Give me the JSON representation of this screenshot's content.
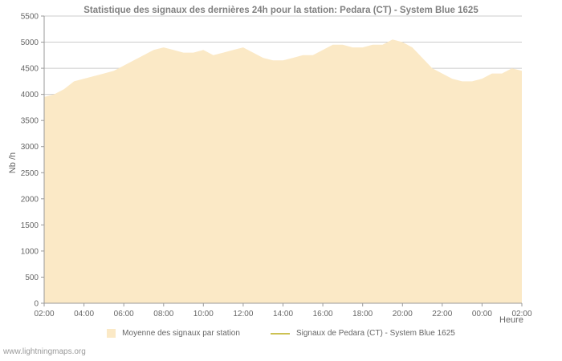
{
  "page": {
    "watermark": "www.lightningmaps.org"
  },
  "chart_data": {
    "type": "area",
    "title": "Statistique des signaux des dernières 24h pour la station: Pedara (CT) - System Blue 1625",
    "xlabel": "Heure",
    "ylabel": "Nb /h",
    "ylim": [
      0,
      5500
    ],
    "y_ticks": [
      0,
      500,
      1000,
      1500,
      2000,
      2500,
      3000,
      3500,
      4000,
      4500,
      5000,
      5500
    ],
    "x_tick_labels": [
      "02:00",
      "04:00",
      "06:00",
      "08:00",
      "10:00",
      "12:00",
      "14:00",
      "16:00",
      "18:00",
      "20:00",
      "22:00",
      "00:00",
      "02:00"
    ],
    "grid": true,
    "legend_position": "bottom",
    "colors": {
      "grid": "#cccccc",
      "axis": "#999999",
      "tick_text": "#666666",
      "title": "#808080",
      "area_fill": "#fbe9c6",
      "line": "#ccc152"
    },
    "series": [
      {
        "name": "Moyenne des signaux par station",
        "type": "area",
        "color": "#fbe9c6",
        "x_start": "02:00",
        "step_minutes": 30,
        "values": [
          3950,
          4000,
          4100,
          4250,
          4300,
          4350,
          4400,
          4450,
          4550,
          4650,
          4750,
          4850,
          4900,
          4850,
          4800,
          4800,
          4850,
          4750,
          4800,
          4850,
          4900,
          4800,
          4700,
          4650,
          4650,
          4700,
          4750,
          4750,
          4850,
          4950,
          4950,
          4900,
          4900,
          4950,
          4950,
          5050,
          5000,
          4900,
          4700,
          4500,
          4400,
          4300,
          4250,
          4250,
          4300,
          4400,
          4400,
          4500,
          4450
        ]
      },
      {
        "name": "Signaux de Pedara (CT) - System Blue 1625",
        "type": "line",
        "color": "#ccc152",
        "values": []
      }
    ]
  }
}
